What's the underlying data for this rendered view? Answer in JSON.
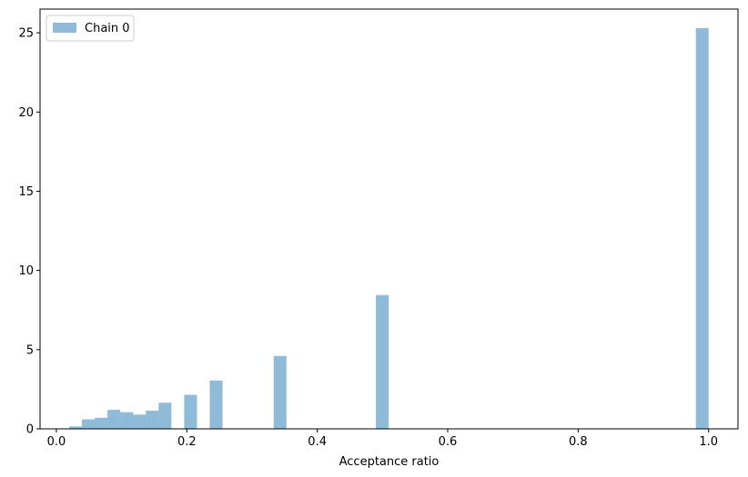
{
  "chart_data": {
    "type": "bar",
    "subtype": "histogram",
    "xlabel": "Acceptance ratio",
    "ylabel": "",
    "title": "",
    "xlim": [
      -0.025,
      1.045
    ],
    "ylim": [
      0,
      26.5
    ],
    "xticks": [
      0.0,
      0.2,
      0.4,
      0.6,
      0.8,
      1.0
    ],
    "xtick_labels": [
      "0.0",
      "0.2",
      "0.4",
      "0.6",
      "0.8",
      "1.0"
    ],
    "yticks": [
      0,
      5,
      10,
      15,
      20,
      25
    ],
    "ytick_labels": [
      "0",
      "5",
      "10",
      "15",
      "20",
      "25"
    ],
    "grid": false,
    "legend": {
      "position": "top-left",
      "entries": [
        "Chain 0"
      ]
    },
    "series": [
      {
        "name": "Chain 0",
        "color": "#1f77b4",
        "alpha": 0.5,
        "bin_width": 0.0196,
        "bins": [
          {
            "x0": 0.0196,
            "value": 0.15
          },
          {
            "x0": 0.0392,
            "value": 0.6
          },
          {
            "x0": 0.0588,
            "value": 0.7
          },
          {
            "x0": 0.0784,
            "value": 1.2
          },
          {
            "x0": 0.098,
            "value": 1.05
          },
          {
            "x0": 0.1176,
            "value": 0.9
          },
          {
            "x0": 0.1372,
            "value": 1.15
          },
          {
            "x0": 0.1568,
            "value": 1.65
          },
          {
            "x0": 0.196,
            "value": 2.15
          },
          {
            "x0": 0.2352,
            "value": 3.05
          },
          {
            "x0": 0.3332,
            "value": 4.6
          },
          {
            "x0": 0.4899,
            "value": 8.45
          },
          {
            "x0": 0.9804,
            "value": 25.3
          }
        ]
      }
    ]
  }
}
